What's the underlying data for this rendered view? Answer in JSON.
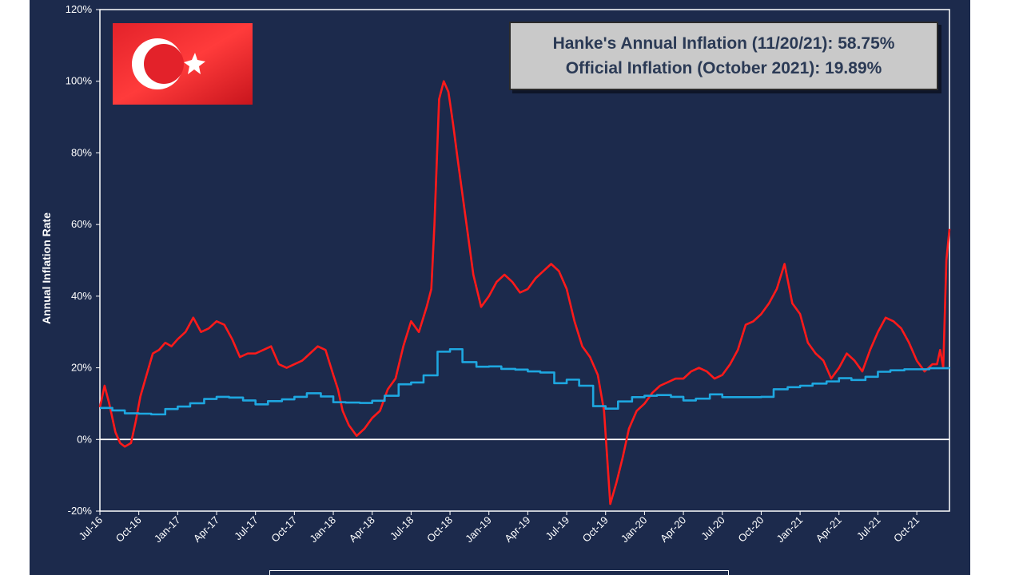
{
  "chart_data": {
    "type": "line",
    "title": "",
    "ylabel": "Annual Inflation Rate",
    "xlabel": "",
    "ylim": [
      -20,
      120
    ],
    "yticks": [
      -20,
      0,
      20,
      40,
      60,
      80,
      100,
      120
    ],
    "ytick_labels": [
      "-20%",
      "0%",
      "20%",
      "40%",
      "60%",
      "80%",
      "100%",
      "120%"
    ],
    "xlim": [
      2016.5,
      2021.96
    ],
    "xticks": [
      2016.5,
      2016.75,
      2017.0,
      2017.25,
      2017.5,
      2017.75,
      2018.0,
      2018.25,
      2018.5,
      2018.75,
      2019.0,
      2019.25,
      2019.5,
      2019.75,
      2020.0,
      2020.25,
      2020.5,
      2020.75,
      2021.0,
      2021.25,
      2021.5,
      2021.75
    ],
    "xtick_labels": [
      "Jul-16",
      "Oct-16",
      "Jan-17",
      "Apr-17",
      "Jul-17",
      "Oct-17",
      "Jan-18",
      "Apr-18",
      "Jul-18",
      "Oct-18",
      "Jan-19",
      "Apr-19",
      "Jul-19",
      "Oct-19",
      "Jan-20",
      "Apr-20",
      "Jul-20",
      "Oct-20",
      "Jan-21",
      "Apr-21",
      "Jul-21",
      "Oct-21"
    ],
    "grid": false,
    "annotations": [
      "Hanke's Annual Inflation (11/20/21): 58.75%",
      "Official Inflation (October 2021): 19.89%"
    ],
    "series": [
      {
        "color": "#ff1a1a",
        "x": [
          2016.5,
          2016.53,
          2016.56,
          2016.6,
          2016.63,
          2016.66,
          2016.7,
          2016.73,
          2016.76,
          2016.8,
          2016.84,
          2016.88,
          2016.92,
          2016.96,
          2017.0,
          2017.05,
          2017.1,
          2017.15,
          2017.2,
          2017.25,
          2017.3,
          2017.35,
          2017.4,
          2017.45,
          2017.5,
          2017.55,
          2017.6,
          2017.65,
          2017.7,
          2017.75,
          2017.8,
          2017.85,
          2017.9,
          2017.95,
          2018.0,
          2018.03,
          2018.06,
          2018.1,
          2018.15,
          2018.2,
          2018.25,
          2018.3,
          2018.35,
          2018.4,
          2018.45,
          2018.5,
          2018.55,
          2018.6,
          2018.63,
          2018.65,
          2018.68,
          2018.71,
          2018.74,
          2018.77,
          2018.8,
          2018.85,
          2018.9,
          2018.95,
          2019.0,
          2019.05,
          2019.1,
          2019.15,
          2019.2,
          2019.25,
          2019.3,
          2019.35,
          2019.4,
          2019.45,
          2019.5,
          2019.55,
          2019.6,
          2019.65,
          2019.7,
          2019.74,
          2019.78,
          2019.82,
          2019.86,
          2019.9,
          2019.95,
          2020.0,
          2020.05,
          2020.1,
          2020.15,
          2020.2,
          2020.25,
          2020.3,
          2020.35,
          2020.4,
          2020.45,
          2020.5,
          2020.55,
          2020.6,
          2020.65,
          2020.7,
          2020.75,
          2020.8,
          2020.85,
          2020.9,
          2020.95,
          2021.0,
          2021.05,
          2021.1,
          2021.15,
          2021.2,
          2021.25,
          2021.3,
          2021.35,
          2021.4,
          2021.45,
          2021.5,
          2021.55,
          2021.6,
          2021.65,
          2021.7,
          2021.75,
          2021.8,
          2021.85,
          2021.88,
          2021.9,
          2021.92,
          2021.94,
          2021.96
        ],
        "values": [
          9,
          15,
          10,
          2,
          -1,
          -2,
          -1,
          5,
          12,
          18,
          24,
          25,
          27,
          26,
          28,
          30,
          34,
          30,
          31,
          33,
          32,
          28,
          23,
          24,
          24,
          25,
          26,
          21,
          20,
          21,
          22,
          24,
          26,
          25,
          18,
          14,
          8,
          4,
          1,
          3,
          6,
          8,
          14,
          17,
          26,
          33,
          30,
          37,
          42,
          60,
          95,
          100,
          97,
          88,
          78,
          62,
          46,
          37,
          40,
          44,
          46,
          44,
          41,
          42,
          45,
          47,
          49,
          47,
          42,
          33,
          26,
          23,
          18,
          8,
          -18,
          -12,
          -5,
          3,
          8,
          10,
          13,
          15,
          16,
          17,
          17,
          19,
          20,
          19,
          17,
          18,
          21,
          25,
          32,
          33,
          35,
          38,
          42,
          49,
          38,
          35,
          27,
          24,
          22,
          17,
          20,
          24,
          22,
          19,
          25,
          30,
          34,
          33,
          31,
          27,
          22,
          19,
          21,
          21,
          25,
          20,
          50,
          58.75
        ]
      },
      {
        "color": "#1ea7e0",
        "x": [
          2016.5,
          2016.58,
          2016.66,
          2016.75,
          2016.83,
          2016.92,
          2017.0,
          2017.08,
          2017.17,
          2017.25,
          2017.33,
          2017.42,
          2017.5,
          2017.58,
          2017.67,
          2017.75,
          2017.83,
          2017.92,
          2018.0,
          2018.08,
          2018.17,
          2018.25,
          2018.33,
          2018.42,
          2018.5,
          2018.58,
          2018.67,
          2018.75,
          2018.83,
          2018.92,
          2019.0,
          2019.08,
          2019.17,
          2019.25,
          2019.33,
          2019.42,
          2019.5,
          2019.58,
          2019.67,
          2019.75,
          2019.83,
          2019.92,
          2020.0,
          2020.08,
          2020.17,
          2020.25,
          2020.33,
          2020.42,
          2020.5,
          2020.58,
          2020.67,
          2020.75,
          2020.83,
          2020.92,
          2021.0,
          2021.08,
          2021.17,
          2021.25,
          2021.33,
          2021.42,
          2021.5,
          2021.58,
          2021.67,
          2021.75,
          2021.83,
          2021.96
        ],
        "values": [
          8.8,
          8.1,
          7.3,
          7.2,
          7.0,
          8.5,
          9.2,
          10.1,
          11.3,
          11.9,
          11.7,
          10.9,
          9.8,
          10.7,
          11.2,
          11.9,
          12.9,
          12.0,
          10.4,
          10.3,
          10.2,
          10.8,
          12.2,
          15.4,
          15.9,
          17.9,
          24.5,
          25.2,
          21.6,
          20.3,
          20.4,
          19.7,
          19.5,
          19.0,
          18.7,
          15.7,
          16.7,
          15.0,
          9.3,
          8.6,
          10.6,
          11.8,
          12.2,
          12.4,
          11.9,
          10.9,
          11.4,
          12.6,
          11.8,
          11.8,
          11.8,
          11.9,
          14.0,
          14.6,
          15.0,
          15.6,
          16.2,
          17.1,
          16.6,
          17.5,
          18.9,
          19.3,
          19.6,
          19.6,
          19.9,
          19.89
        ]
      }
    ]
  }
}
